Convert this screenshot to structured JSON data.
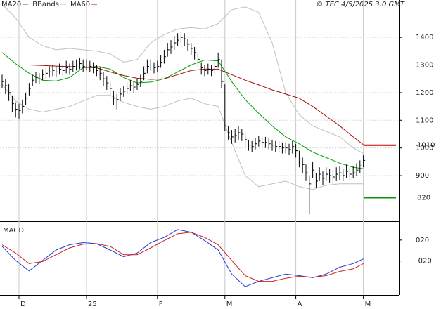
{
  "chart_data": [
    {
      "type": "ohlc",
      "source": "© TEC 4/5/2025 3:0 GMT",
      "xlim": [
        -0.625,
        117.5
      ],
      "xticks": [
        {
          "value": 5,
          "label": "D"
        },
        {
          "value": 25,
          "label": "25"
        },
        {
          "value": 46,
          "label": "F"
        },
        {
          "value": 66,
          "label": "M"
        },
        {
          "value": 87,
          "label": "A"
        },
        {
          "value": 107,
          "label": "M"
        }
      ],
      "ylim": [
        735,
        1535
      ],
      "yticks": [
        900,
        1000,
        1100,
        1200,
        1300,
        1400
      ],
      "grid": true,
      "bar_color": "#000000",
      "ohlc": {
        "high": [
          1265,
          1250,
          1230,
          1190,
          1165,
          1160,
          1175,
          1200,
          1235,
          1265,
          1275,
          1270,
          1285,
          1290,
          1295,
          1300,
          1295,
          1305,
          1300,
          1315,
          1305,
          1315,
          1320,
          1325,
          1320,
          1320,
          1315,
          1310,
          1300,
          1295,
          1275,
          1260,
          1240,
          1205,
          1195,
          1215,
          1225,
          1235,
          1245,
          1240,
          1250,
          1265,
          1295,
          1320,
          1320,
          1310,
          1315,
          1335,
          1355,
          1380,
          1390,
          1405,
          1415,
          1420,
          1415,
          1395,
          1380,
          1365,
          1345,
          1310,
          1300,
          1305,
          1300,
          1315,
          1345,
          1320,
          1230,
          1080,
          1065,
          1070,
          1080,
          1070,
          1055,
          1030,
          1025,
          1035,
          1045,
          1040,
          1040,
          1035,
          1030,
          1025,
          1025,
          1020,
          1020,
          1015,
          1025,
          1015,
          990,
          965,
          940,
          900,
          950,
          910,
          930,
          915,
          930,
          925,
          920,
          930,
          935,
          925,
          940,
          930,
          935,
          945,
          955,
          975
        ],
        "low": [
          1215,
          1195,
          1170,
          1130,
          1110,
          1105,
          1125,
          1155,
          1190,
          1225,
          1235,
          1230,
          1245,
          1250,
          1255,
          1260,
          1255,
          1265,
          1260,
          1270,
          1265,
          1275,
          1280,
          1285,
          1275,
          1280,
          1275,
          1270,
          1260,
          1245,
          1225,
          1210,
          1190,
          1155,
          1140,
          1170,
          1185,
          1195,
          1205,
          1200,
          1210,
          1220,
          1245,
          1270,
          1280,
          1270,
          1275,
          1290,
          1305,
          1330,
          1340,
          1355,
          1370,
          1380,
          1370,
          1350,
          1335,
          1320,
          1295,
          1265,
          1260,
          1265,
          1260,
          1270,
          1290,
          1215,
          1060,
          1030,
          1015,
          1020,
          1030,
          1025,
          1005,
          990,
          985,
          995,
          1005,
          1000,
          1000,
          995,
          990,
          985,
          985,
          980,
          980,
          975,
          980,
          965,
          930,
          910,
          880,
          760,
          890,
          855,
          880,
          865,
          880,
          875,
          870,
          880,
          885,
          880,
          890,
          885,
          890,
          900,
          910,
          930
        ],
        "close": [
          1240,
          1225,
          1200,
          1160,
          1140,
          1135,
          1150,
          1180,
          1215,
          1245,
          1255,
          1250,
          1265,
          1270,
          1275,
          1280,
          1275,
          1285,
          1280,
          1290,
          1285,
          1295,
          1300,
          1305,
          1295,
          1300,
          1295,
          1290,
          1280,
          1270,
          1250,
          1235,
          1215,
          1180,
          1175,
          1195,
          1205,
          1215,
          1225,
          1220,
          1230,
          1240,
          1270,
          1295,
          1300,
          1290,
          1295,
          1310,
          1330,
          1355,
          1365,
          1380,
          1390,
          1400,
          1395,
          1375,
          1360,
          1345,
          1320,
          1290,
          1280,
          1285,
          1280,
          1295,
          1320,
          1240,
          1080,
          1055,
          1040,
          1045,
          1055,
          1050,
          1030,
          1010,
          1005,
          1015,
          1025,
          1020,
          1020,
          1015,
          1010,
          1005,
          1005,
          1000,
          1000,
          995,
          1005,
          990,
          960,
          940,
          910,
          870,
          920,
          880,
          905,
          890,
          905,
          900,
          895,
          905,
          910,
          900,
          915,
          905,
          910,
          920,
          935,
          955
        ]
      },
      "series": [
        {
          "name": "MA20",
          "color": "#00a000",
          "x": [
            0,
            4,
            8,
            12,
            16,
            20,
            24,
            28,
            32,
            36,
            40,
            44,
            48,
            52,
            56,
            60,
            64,
            68,
            72,
            76,
            80,
            84,
            88,
            92,
            96,
            100,
            104,
            107
          ],
          "values": [
            1345,
            1305,
            1270,
            1245,
            1242,
            1255,
            1290,
            1295,
            1285,
            1255,
            1235,
            1238,
            1250,
            1275,
            1300,
            1318,
            1315,
            1240,
            1175,
            1125,
            1080,
            1040,
            1015,
            985,
            965,
            945,
            930,
            925
          ]
        },
        {
          "name": "BBands",
          "color": "#c0c0c0",
          "x": [
            0,
            4,
            8,
            12,
            16,
            20,
            24,
            28,
            32,
            36,
            40,
            44,
            48,
            52,
            56,
            60,
            64,
            68,
            72,
            76,
            80,
            84,
            88,
            92,
            96,
            100,
            104,
            107
          ],
          "upper": [
            1520,
            1470,
            1400,
            1370,
            1355,
            1360,
            1355,
            1350,
            1340,
            1310,
            1320,
            1380,
            1410,
            1430,
            1435,
            1430,
            1450,
            1500,
            1510,
            1490,
            1380,
            1200,
            1120,
            1080,
            1060,
            1040,
            1000,
            980
          ],
          "lower": [
            1230,
            1170,
            1140,
            1130,
            1140,
            1150,
            1170,
            1190,
            1190,
            1165,
            1150,
            1140,
            1150,
            1170,
            1180,
            1160,
            1150,
            1020,
            900,
            860,
            870,
            880,
            860,
            850,
            865,
            870,
            870,
            870
          ]
        },
        {
          "name": "MA60",
          "color": "#a01010",
          "x": [
            0,
            4,
            8,
            12,
            16,
            20,
            24,
            28,
            32,
            36,
            40,
            44,
            48,
            52,
            56,
            60,
            64,
            68,
            72,
            76,
            80,
            84,
            88,
            92,
            96,
            100,
            104,
            107
          ],
          "values": [
            1300,
            1300,
            1300,
            1298,
            1296,
            1294,
            1292,
            1290,
            1275,
            1262,
            1252,
            1248,
            1250,
            1265,
            1280,
            1285,
            1285,
            1265,
            1245,
            1228,
            1210,
            1195,
            1180,
            1150,
            1115,
            1080,
            1040,
            1012
          ]
        }
      ],
      "annotations": [
        {
          "value": 1010,
          "color": "#cc0000"
        },
        {
          "value": 820,
          "color": "#009900"
        }
      ]
    },
    {
      "type": "line",
      "title": "MACD",
      "ylim": [
        -85,
        52
      ],
      "yticks": [
        {
          "value": 20,
          "label": "020"
        },
        {
          "value": -20,
          "label": "-020"
        }
      ],
      "series": [
        {
          "color": "#1f3fd0",
          "x": [
            0,
            4,
            8,
            12,
            16,
            20,
            24,
            28,
            32,
            36,
            40,
            44,
            48,
            52,
            56,
            60,
            64,
            68,
            72,
            76,
            80,
            84,
            88,
            92,
            96,
            100,
            104,
            107
          ],
          "values": [
            8,
            -19,
            -39,
            -19,
            1,
            11,
            15,
            13,
            1,
            -12,
            -5,
            15,
            25,
            40,
            35,
            19,
            1,
            -45,
            -69,
            -59,
            -52,
            -45,
            -48,
            -52,
            -45,
            -32,
            -25,
            -16
          ]
        },
        {
          "color": "#d02020",
          "x": [
            0,
            4,
            8,
            12,
            16,
            20,
            24,
            28,
            32,
            36,
            40,
            44,
            48,
            52,
            56,
            60,
            64,
            68,
            72,
            76,
            80,
            84,
            88,
            92,
            96,
            100,
            104,
            107
          ],
          "values": [
            11,
            -5,
            -25,
            -21,
            -8,
            5,
            12,
            13,
            8,
            -8,
            -8,
            5,
            19,
            32,
            35,
            25,
            11,
            -19,
            -48,
            -59,
            -59,
            -53,
            -49,
            -51,
            -48,
            -40,
            -35,
            -25
          ]
        }
      ]
    }
  ]
}
